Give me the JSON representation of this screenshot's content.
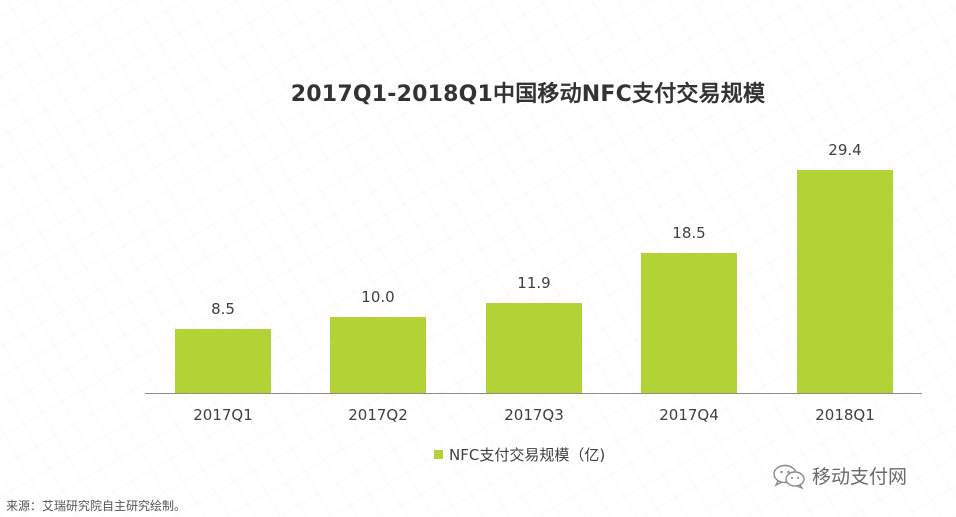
{
  "title": "2017Q1-2018Q1中国移动NFC支付交易规模",
  "legend": {
    "label": "NFC支付交易规模（亿)",
    "color": "#b2d235"
  },
  "source": "来源：艾瑞研究院自主研究绘制。",
  "brand": {
    "label": "移动支付网",
    "icon": "wechat-icon"
  },
  "bars": [
    {
      "category": "2017Q1",
      "value_label": "8.5"
    },
    {
      "category": "2017Q2",
      "value_label": "10.0"
    },
    {
      "category": "2017Q3",
      "value_label": "11.9"
    },
    {
      "category": "2017Q4",
      "value_label": "18.5"
    },
    {
      "category": "2018Q1",
      "value_label": "29.4"
    }
  ],
  "chart_data": {
    "type": "bar",
    "title": "2017Q1-2018Q1中国移动NFC支付交易规模",
    "categories": [
      "2017Q1",
      "2017Q2",
      "2017Q3",
      "2017Q4",
      "2018Q1"
    ],
    "series": [
      {
        "name": "NFC支付交易规模（亿)",
        "values": [
          8.5,
          10.0,
          11.9,
          18.5,
          29.4
        ],
        "color": "#b2d235"
      }
    ],
    "xlabel": "",
    "ylabel": "",
    "ylim": [
      0,
      30
    ],
    "grid": false,
    "y_axis_visible": false,
    "data_labels": true,
    "legend_position": "bottom",
    "source_note": "来源：艾瑞研究院自主研究绘制。"
  }
}
